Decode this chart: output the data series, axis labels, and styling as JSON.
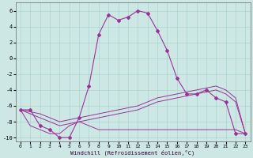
{
  "xlabel": "Windchill (Refroidissement éolien,°C)",
  "background_color": "#cde8e4",
  "grid_color": "#aad4cc",
  "line_color": "#993399",
  "xlim": [
    -0.5,
    23.5
  ],
  "ylim": [
    -10.5,
    7.0
  ],
  "yticks": [
    -10,
    -8,
    -6,
    -4,
    -2,
    0,
    2,
    4,
    6
  ],
  "xticks": [
    0,
    1,
    2,
    3,
    4,
    5,
    6,
    7,
    8,
    9,
    10,
    11,
    12,
    13,
    14,
    15,
    16,
    17,
    18,
    19,
    20,
    21,
    22,
    23
  ],
  "curve_main_x": [
    0,
    1,
    2,
    3,
    4,
    5,
    6,
    7,
    8,
    9,
    10,
    11,
    12,
    13,
    14,
    15,
    16,
    17,
    18,
    19,
    20,
    21,
    22,
    23
  ],
  "curve_main_y": [
    -6.5,
    -6.5,
    -8.5,
    -9.0,
    -10.0,
    -10.0,
    -7.5,
    -3.5,
    3.0,
    5.5,
    4.8,
    5.2,
    6.0,
    5.7,
    3.5,
    1.0,
    -2.5,
    -4.5,
    -4.5,
    -4.0,
    -5.0,
    -5.5,
    -9.5,
    -9.5
  ],
  "curve_flat_x": [
    0,
    1,
    2,
    3,
    4,
    5,
    6,
    7,
    8,
    9,
    10,
    11,
    12,
    13,
    14,
    15,
    16,
    17,
    18,
    19,
    20,
    21,
    22,
    23
  ],
  "curve_flat_y": [
    -6.5,
    -8.5,
    -9.0,
    -9.5,
    -9.5,
    -8.5,
    -8.0,
    -8.5,
    -9.0,
    -9.0,
    -9.0,
    -9.0,
    -9.0,
    -9.0,
    -9.0,
    -9.0,
    -9.0,
    -9.0,
    -9.0,
    -9.0,
    -9.0,
    -9.0,
    -9.0,
    -9.5
  ],
  "curve_diag1_x": [
    0,
    2,
    4,
    6,
    8,
    10,
    12,
    14,
    16,
    18,
    20,
    21,
    22,
    23
  ],
  "curve_diag1_y": [
    -6.5,
    -7.5,
    -8.5,
    -8.0,
    -7.5,
    -7.0,
    -6.5,
    -5.5,
    -5.0,
    -4.5,
    -4.0,
    -4.5,
    -5.5,
    -9.5
  ],
  "curve_diag2_x": [
    0,
    2,
    4,
    6,
    8,
    10,
    12,
    14,
    16,
    18,
    20,
    21,
    22,
    23
  ],
  "curve_diag2_y": [
    -6.5,
    -7.0,
    -8.0,
    -7.5,
    -7.0,
    -6.5,
    -6.0,
    -5.0,
    -4.5,
    -4.0,
    -3.5,
    -4.0,
    -5.0,
    -9.5
  ]
}
